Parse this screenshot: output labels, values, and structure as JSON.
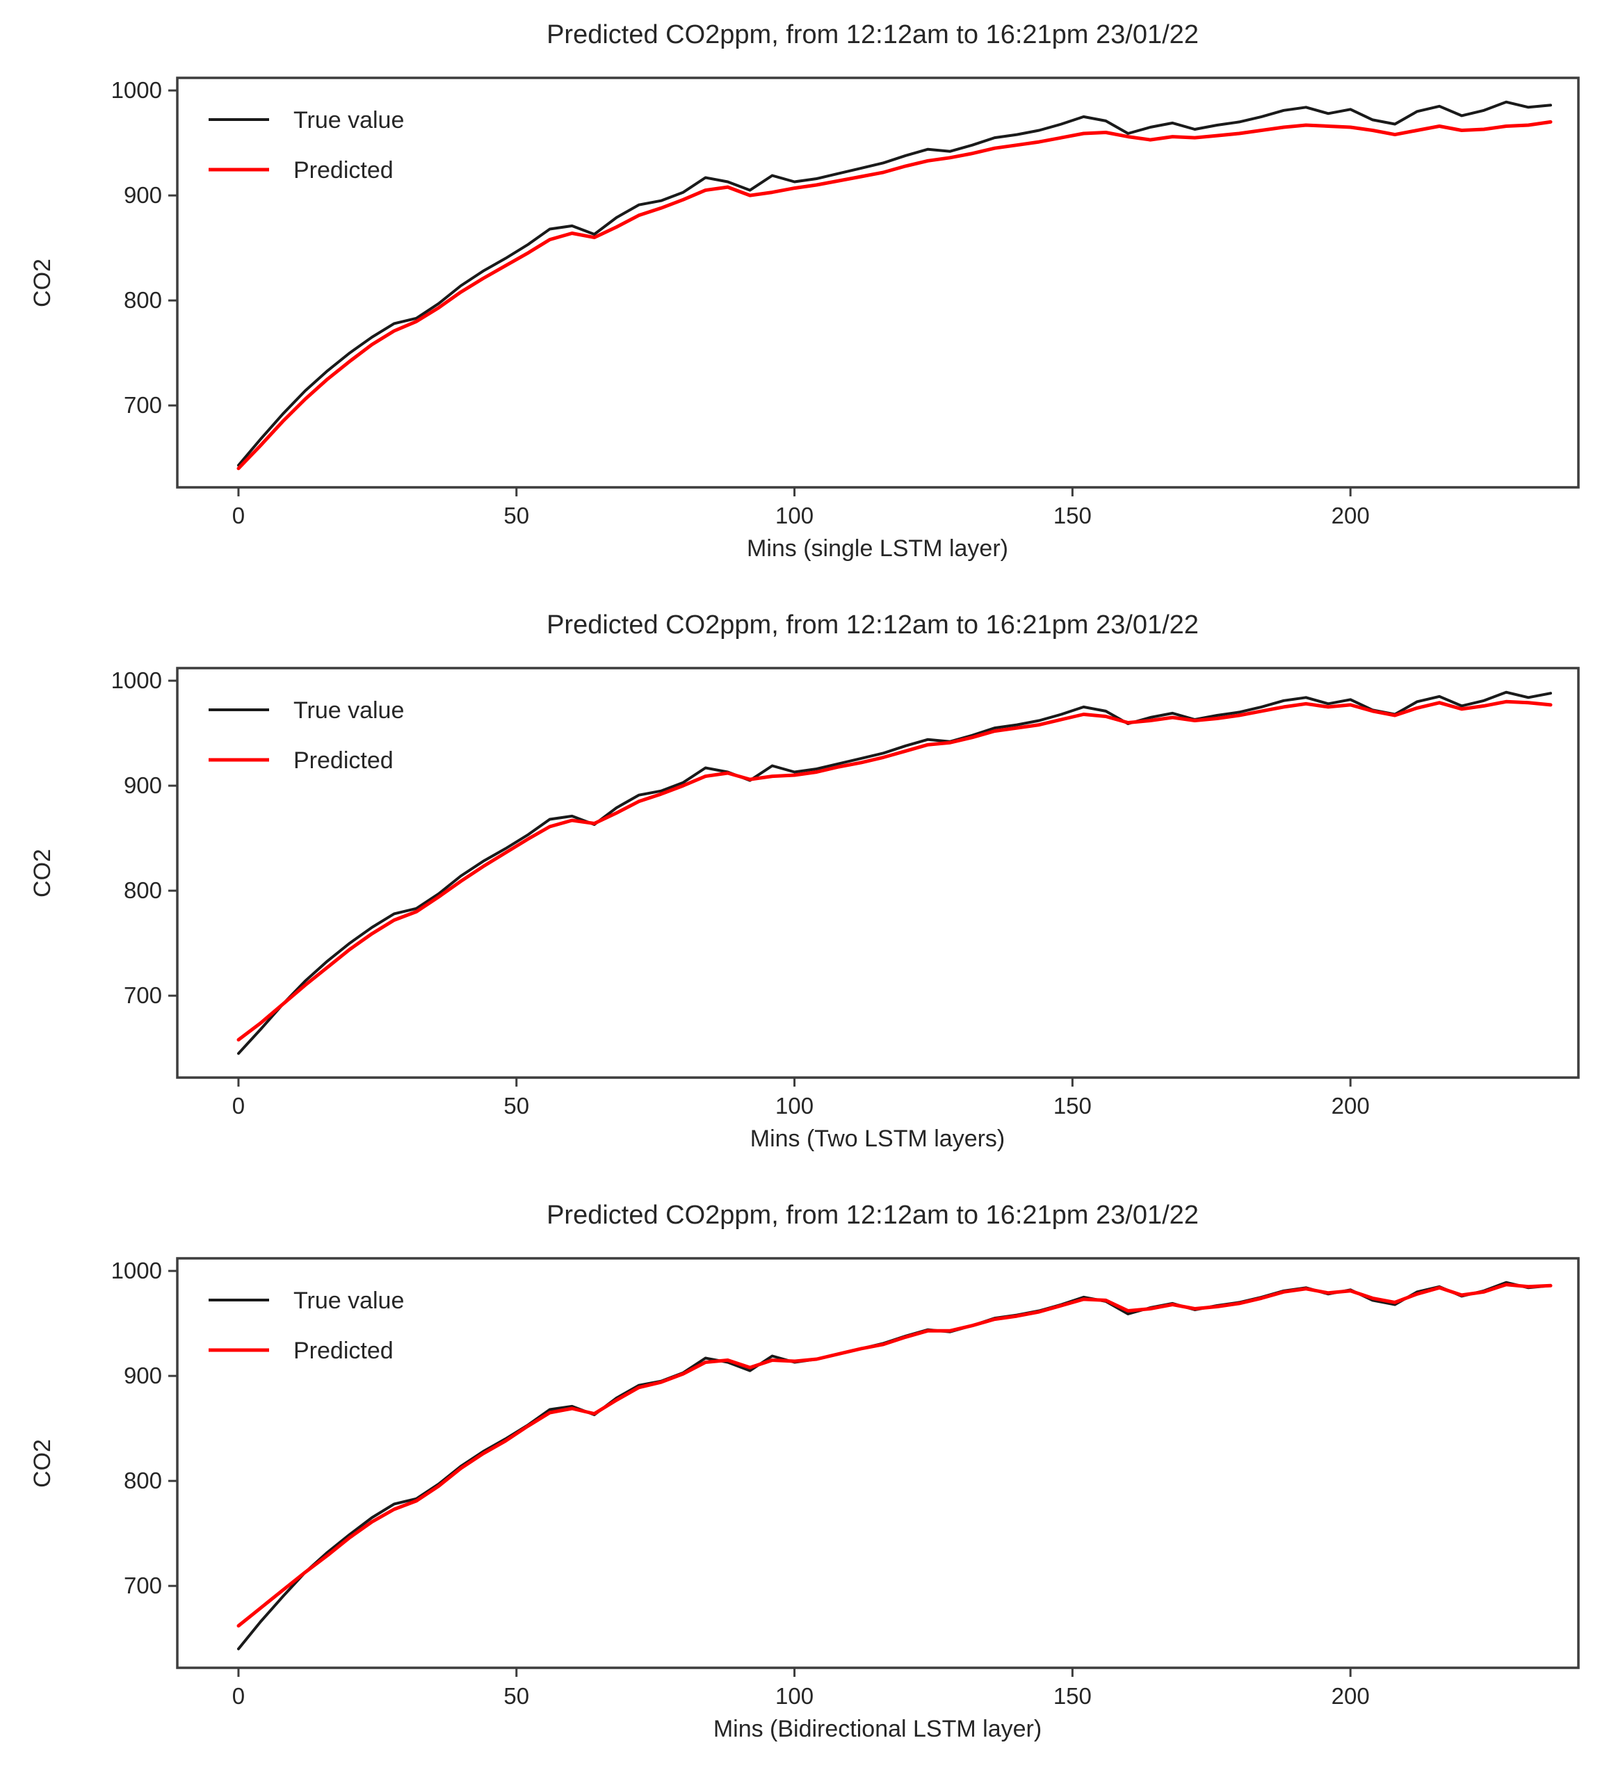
{
  "page": {
    "background": "#ffffff",
    "text_color": "#262626",
    "axis_color": "#3d3d3d"
  },
  "chart_data": [
    {
      "type": "line",
      "title": "Predicted CO2ppm, from 12:12am to 16:21pm 23/01/22",
      "xlabel": "Mins (single LSTM layer)",
      "ylabel": "CO2",
      "xticks": [
        0,
        50,
        100,
        150,
        200
      ],
      "yticks": [
        700,
        800,
        900,
        1000
      ],
      "xlim": [
        -11,
        241
      ],
      "ylim": [
        622,
        1012
      ],
      "grid": false,
      "legend_position": "upper left",
      "legend": [
        {
          "label": "True value",
          "color": "#1a1a1a"
        },
        {
          "label": "Predicted",
          "color": "#ff0000"
        }
      ],
      "x": [
        0,
        4,
        8,
        12,
        16,
        20,
        24,
        28,
        32,
        36,
        40,
        44,
        48,
        52,
        56,
        60,
        64,
        68,
        72,
        76,
        80,
        84,
        88,
        92,
        96,
        100,
        104,
        108,
        112,
        116,
        120,
        124,
        128,
        132,
        136,
        140,
        144,
        148,
        152,
        156,
        160,
        164,
        168,
        172,
        176,
        180,
        184,
        188,
        192,
        196,
        200,
        204,
        208,
        212,
        216,
        220,
        224,
        228,
        232,
        236
      ],
      "series": [
        {
          "name": "True value",
          "color": "#1a1a1a",
          "width": 4,
          "values": [
            643,
            668,
            692,
            714,
            733,
            750,
            765,
            778,
            783,
            797,
            814,
            828,
            840,
            853,
            868,
            871,
            863,
            879,
            891,
            895,
            903,
            917,
            913,
            905,
            919,
            913,
            916,
            921,
            926,
            931,
            938,
            944,
            942,
            948,
            955,
            958,
            962,
            968,
            975,
            971,
            959,
            965,
            969,
            963,
            967,
            970,
            975,
            981,
            984,
            978,
            982,
            972,
            968,
            980,
            985,
            976,
            981,
            989,
            984,
            986
          ]
        },
        {
          "name": "Predicted",
          "color": "#ff0000",
          "width": 5,
          "values": [
            640,
            662,
            685,
            706,
            725,
            742,
            758,
            771,
            780,
            793,
            808,
            821,
            833,
            845,
            858,
            864,
            860,
            870,
            881,
            888,
            896,
            905,
            908,
            900,
            903,
            907,
            910,
            914,
            918,
            922,
            928,
            933,
            936,
            940,
            945,
            948,
            951,
            955,
            959,
            960,
            956,
            953,
            956,
            955,
            957,
            959,
            962,
            965,
            967,
            966,
            965,
            962,
            958,
            962,
            966,
            962,
            963,
            966,
            967,
            970
          ]
        }
      ]
    },
    {
      "type": "line",
      "title": "Predicted CO2ppm, from 12:12am to 16:21pm 23/01/22",
      "xlabel": "Mins (Two LSTM layers)",
      "ylabel": "CO2",
      "xticks": [
        0,
        50,
        100,
        150,
        200
      ],
      "yticks": [
        700,
        800,
        900,
        1000
      ],
      "xlim": [
        -11,
        241
      ],
      "ylim": [
        622,
        1012
      ],
      "grid": false,
      "legend_position": "upper left",
      "legend": [
        {
          "label": "True value",
          "color": "#1a1a1a"
        },
        {
          "label": "Predicted",
          "color": "#ff0000"
        }
      ],
      "x": [
        0,
        4,
        8,
        12,
        16,
        20,
        24,
        28,
        32,
        36,
        40,
        44,
        48,
        52,
        56,
        60,
        64,
        68,
        72,
        76,
        80,
        84,
        88,
        92,
        96,
        100,
        104,
        108,
        112,
        116,
        120,
        124,
        128,
        132,
        136,
        140,
        144,
        148,
        152,
        156,
        160,
        164,
        168,
        172,
        176,
        180,
        184,
        188,
        192,
        196,
        200,
        204,
        208,
        212,
        216,
        220,
        224,
        228,
        232,
        236
      ],
      "series": [
        {
          "name": "True value",
          "color": "#1a1a1a",
          "width": 4,
          "values": [
            645,
            668,
            692,
            714,
            733,
            750,
            765,
            778,
            783,
            797,
            814,
            828,
            840,
            853,
            868,
            871,
            863,
            879,
            891,
            895,
            903,
            917,
            913,
            905,
            919,
            913,
            916,
            921,
            926,
            931,
            938,
            944,
            942,
            948,
            955,
            958,
            962,
            968,
            975,
            971,
            959,
            965,
            969,
            963,
            967,
            970,
            975,
            981,
            984,
            978,
            982,
            972,
            968,
            980,
            985,
            976,
            981,
            989,
            984,
            988
          ]
        },
        {
          "name": "Predicted",
          "color": "#ff0000",
          "width": 5,
          "values": [
            658,
            674,
            692,
            710,
            727,
            744,
            759,
            772,
            780,
            794,
            809,
            823,
            836,
            849,
            861,
            867,
            864,
            874,
            885,
            892,
            900,
            909,
            912,
            906,
            909,
            910,
            913,
            918,
            922,
            927,
            933,
            939,
            941,
            946,
            952,
            955,
            958,
            963,
            968,
            966,
            960,
            962,
            965,
            962,
            964,
            967,
            971,
            975,
            978,
            975,
            977,
            971,
            967,
            974,
            979,
            973,
            976,
            980,
            979,
            977
          ]
        }
      ]
    },
    {
      "type": "line",
      "title": "Predicted CO2ppm, from 12:12am to 16:21pm 23/01/22",
      "xlabel": "Mins (Bidirectional LSTM layer)",
      "ylabel": "CO2",
      "xticks": [
        0,
        50,
        100,
        150,
        200
      ],
      "yticks": [
        700,
        800,
        900,
        1000
      ],
      "xlim": [
        -11,
        241
      ],
      "ylim": [
        622,
        1012
      ],
      "grid": false,
      "legend_position": "upper left",
      "legend": [
        {
          "label": "True value",
          "color": "#1a1a1a"
        },
        {
          "label": "Predicted",
          "color": "#ff0000"
        }
      ],
      "x": [
        0,
        4,
        8,
        12,
        16,
        20,
        24,
        28,
        32,
        36,
        40,
        44,
        48,
        52,
        56,
        60,
        64,
        68,
        72,
        76,
        80,
        84,
        88,
        92,
        96,
        100,
        104,
        108,
        112,
        116,
        120,
        124,
        128,
        132,
        136,
        140,
        144,
        148,
        152,
        156,
        160,
        164,
        168,
        172,
        176,
        180,
        184,
        188,
        192,
        196,
        200,
        204,
        208,
        212,
        216,
        220,
        224,
        228,
        232,
        236
      ],
      "series": [
        {
          "name": "True value",
          "color": "#1a1a1a",
          "width": 4,
          "values": [
            640,
            666,
            690,
            713,
            732,
            749,
            765,
            778,
            783,
            797,
            814,
            828,
            840,
            853,
            868,
            871,
            863,
            879,
            891,
            895,
            903,
            917,
            913,
            905,
            919,
            913,
            916,
            921,
            926,
            931,
            938,
            944,
            942,
            948,
            955,
            958,
            962,
            968,
            975,
            971,
            959,
            965,
            969,
            963,
            967,
            970,
            975,
            981,
            984,
            978,
            982,
            972,
            968,
            980,
            985,
            976,
            981,
            989,
            984,
            986
          ]
        },
        {
          "name": "Predicted",
          "color": "#ff0000",
          "width": 5,
          "values": [
            662,
            679,
            696,
            713,
            729,
            746,
            761,
            773,
            781,
            795,
            812,
            826,
            838,
            852,
            865,
            869,
            864,
            877,
            889,
            894,
            902,
            913,
            915,
            908,
            915,
            914,
            916,
            921,
            926,
            930,
            937,
            943,
            943,
            948,
            954,
            957,
            961,
            967,
            973,
            972,
            962,
            964,
            968,
            964,
            966,
            969,
            974,
            980,
            983,
            979,
            981,
            974,
            970,
            978,
            984,
            977,
            980,
            987,
            985,
            986
          ]
        }
      ]
    }
  ]
}
